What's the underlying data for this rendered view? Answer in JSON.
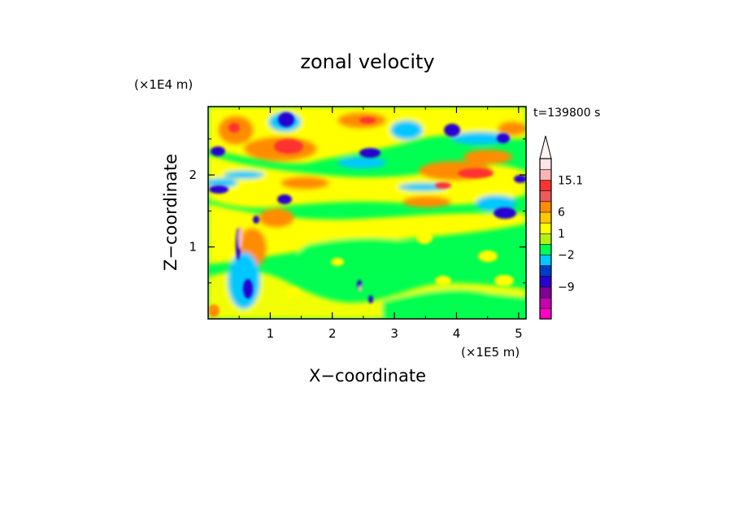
{
  "chart_data": {
    "type": "heatmap",
    "title": "zonal velocity",
    "xlabel": "X−coordinate",
    "ylabel": "Z−coordinate",
    "x_unit_label": "(×1E5 m)",
    "y_unit_label": "(×1E4 m)",
    "time_label": "t=139800 s",
    "xlim": [
      0,
      5.12
    ],
    "ylim": [
      0,
      2.95
    ],
    "x_ticks": [
      1,
      2,
      3,
      4,
      5
    ],
    "x_tick_labels": [
      "1",
      "2",
      "3",
      "4",
      "5"
    ],
    "y_ticks": [
      1,
      2
    ],
    "y_tick_labels": [
      "1",
      "2"
    ],
    "grid": false,
    "colorbar": {
      "levels_bottom_to_top": [
        {
          "color": "#ff00c8"
        },
        {
          "color": "#c800b4"
        },
        {
          "color": "#820096"
        },
        {
          "color": "#2800d2"
        },
        {
          "color": "#003cc8"
        },
        {
          "color": "#00c8ff"
        },
        {
          "color": "#00ff50"
        },
        {
          "color": "#b4f014"
        },
        {
          "color": "#ffff00"
        },
        {
          "color": "#ffc800"
        },
        {
          "color": "#ff8c00"
        },
        {
          "color": "#f05a5a"
        },
        {
          "color": "#ff3232"
        },
        {
          "color": "#ffb4b4"
        },
        {
          "color": "#ffe6e6"
        }
      ],
      "extend_top_triangle": true,
      "labels": [
        {
          "text": "15.1",
          "at_boundary": 13
        },
        {
          "text": "6",
          "at_boundary": 10
        },
        {
          "text": "1",
          "at_boundary": 8
        },
        {
          "text": "−2",
          "at_boundary": 6
        },
        {
          "text": "−9",
          "at_boundary": 3
        }
      ]
    },
    "field_features": [
      {
        "x": 1.15,
        "z": 2.4,
        "color": "#ff8c00"
      },
      {
        "x": 1.35,
        "z": 2.45,
        "color": "#ff3232"
      },
      {
        "x": 0.35,
        "z": 2.0,
        "color": "#2800d2"
      },
      {
        "x": 1.25,
        "z": 1.7,
        "color": "#2800d2"
      },
      {
        "x": 1.3,
        "z": 1.35,
        "color": "#ff8c00"
      },
      {
        "x": 2.5,
        "z": 2.3,
        "color": "#2800d2"
      },
      {
        "x": 3.9,
        "z": 2.55,
        "color": "#2800d2"
      },
      {
        "x": 4.7,
        "z": 2.55,
        "color": "#2800d2"
      },
      {
        "x": 4.7,
        "z": 1.45,
        "color": "#2800d2"
      },
      {
        "x": 1.25,
        "z": 2.8,
        "color": "#2800d2"
      },
      {
        "x": 4.25,
        "z": 1.95,
        "color": "#ff3232"
      },
      {
        "x": 3.8,
        "z": 1.85,
        "color": "#ff8c00"
      },
      {
        "x": 0.5,
        "z": 0.65,
        "color": "#2800d2"
      },
      {
        "x": 4.0,
        "z": 0.95,
        "color": "#ffff00"
      },
      {
        "x": 2.0,
        "z": 0.7,
        "color": "#ffff00"
      }
    ]
  }
}
